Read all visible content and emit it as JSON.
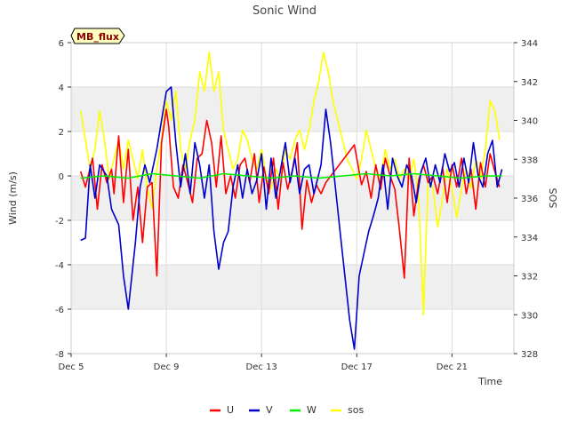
{
  "chart_data": {
    "type": "line",
    "title": "Sonic Wind",
    "badge": "MB_flux",
    "xlabel": "Time",
    "ylabel_left": "Wind (m/s)",
    "ylabel_right": "SOS",
    "xlim": [
      5.0,
      23.6
    ],
    "ylim_left": [
      -8,
      6
    ],
    "ylim_right": [
      328,
      344
    ],
    "x_ticks": [
      {
        "x": 5,
        "label": "Dec 5"
      },
      {
        "x": 9,
        "label": "Dec 9"
      },
      {
        "x": 13,
        "label": "Dec 13"
      },
      {
        "x": 17,
        "label": "Dec 17"
      },
      {
        "x": 21,
        "label": "Dec 21"
      }
    ],
    "y_ticks_left": [
      -8,
      -6,
      -4,
      -2,
      0,
      2,
      4,
      6
    ],
    "y_ticks_right": [
      328,
      330,
      332,
      334,
      336,
      338,
      340,
      342,
      344
    ],
    "grid": true,
    "banded_background": true,
    "legend_position": "bottom-center",
    "colors": {
      "U": "#ff0000",
      "V": "#0000cc",
      "W": "#00ee00",
      "sos": "#ffff00",
      "band": "#efefef",
      "badge_fill": "#ffffc0",
      "badge_text": "#8b0000"
    },
    "series": [
      {
        "name": "U",
        "axis": "left",
        "x": [
          5.4,
          5.6,
          5.9,
          6.1,
          6.3,
          6.5,
          6.7,
          6.8,
          7.0,
          7.2,
          7.4,
          7.6,
          7.8,
          8.0,
          8.2,
          8.4,
          8.6,
          8.8,
          9.0,
          9.1,
          9.3,
          9.5,
          9.7,
          9.9,
          10.1,
          10.3,
          10.5,
          10.7,
          10.9,
          11.1,
          11.3,
          11.5,
          11.7,
          11.9,
          12.1,
          12.3,
          12.5,
          12.7,
          12.9,
          13.1,
          13.3,
          13.5,
          13.7,
          13.9,
          14.1,
          14.3,
          14.5,
          14.7,
          14.9,
          15.1,
          15.3,
          15.5,
          15.7,
          16.9,
          17.0,
          17.2,
          17.4,
          17.6,
          17.8,
          18.0,
          18.2,
          18.4,
          18.6,
          18.8,
          19.0,
          19.2,
          19.4,
          19.6,
          19.8,
          20.0,
          20.2,
          20.4,
          20.6,
          20.8,
          21.0,
          21.2,
          21.4,
          21.6,
          21.8,
          22.0,
          22.2,
          22.4,
          22.6,
          22.8,
          23.0
        ],
        "y": [
          0.2,
          -0.5,
          0.8,
          -1.5,
          0.5,
          -0.3,
          0.3,
          -0.8,
          1.8,
          -1.2,
          1.2,
          -2.0,
          -0.5,
          -3.0,
          -0.5,
          -0.3,
          -4.5,
          1.5,
          3.0,
          2.2,
          -0.5,
          -1.0,
          0.5,
          -0.3,
          -1.2,
          0.8,
          1.0,
          2.5,
          1.5,
          -0.5,
          1.8,
          -0.8,
          0.0,
          -1.0,
          0.5,
          0.8,
          -0.3,
          1.0,
          -1.2,
          0.4,
          -0.8,
          0.8,
          -1.5,
          0.6,
          -0.6,
          0.3,
          1.5,
          -2.4,
          -0.2,
          -1.2,
          -0.4,
          -0.8,
          -0.3,
          1.4,
          0.8,
          -0.4,
          0.2,
          -1.0,
          0.5,
          -0.6,
          0.8,
          0.0,
          -0.6,
          -2.5,
          -4.6,
          0.8,
          -1.8,
          -0.2,
          0.5,
          -0.3,
          0.0,
          -0.8,
          0.4,
          -1.2,
          0.5,
          -0.5,
          0.8,
          -0.8,
          0.3,
          -1.5,
          0.6,
          -0.5,
          1.0,
          0.2,
          -0.5
        ]
      },
      {
        "name": "V",
        "axis": "left",
        "x": [
          5.4,
          5.6,
          5.8,
          6.0,
          6.2,
          6.5,
          6.7,
          7.0,
          7.2,
          7.4,
          7.7,
          7.9,
          8.1,
          8.3,
          8.6,
          8.8,
          9.0,
          9.2,
          9.4,
          9.6,
          9.8,
          10.0,
          10.2,
          10.4,
          10.6,
          10.8,
          11.0,
          11.2,
          11.4,
          11.6,
          11.8,
          12.0,
          12.2,
          12.4,
          12.6,
          12.8,
          13.0,
          13.2,
          13.4,
          13.6,
          13.8,
          14.0,
          14.2,
          14.4,
          14.6,
          14.8,
          15.0,
          15.2,
          15.5,
          15.7,
          15.9,
          16.1,
          16.3,
          16.5,
          16.7,
          16.9,
          17.1,
          17.3,
          17.5,
          17.7,
          17.9,
          18.1,
          18.3,
          18.5,
          18.7,
          18.9,
          19.1,
          19.3,
          19.5,
          19.7,
          19.9,
          20.1,
          20.3,
          20.5,
          20.7,
          20.9,
          21.1,
          21.3,
          21.5,
          21.7,
          21.9,
          22.1,
          22.3,
          22.5,
          22.7,
          22.9,
          23.1
        ],
        "y": [
          -2.9,
          -2.8,
          0.5,
          -1.0,
          0.5,
          0.0,
          -1.5,
          -2.2,
          -4.5,
          -6.0,
          -3.0,
          -0.5,
          0.5,
          -0.3,
          1.2,
          2.5,
          3.8,
          4.0,
          1.5,
          -0.5,
          1.0,
          -0.8,
          1.5,
          0.5,
          -1.0,
          0.5,
          -2.5,
          -4.2,
          -3.0,
          -2.5,
          -0.5,
          0.5,
          -1.0,
          0.3,
          -0.8,
          -0.2,
          1.0,
          -1.5,
          0.8,
          -1.0,
          0.3,
          1.5,
          -0.3,
          0.8,
          -0.8,
          0.3,
          0.5,
          -0.8,
          0.5,
          3.0,
          1.5,
          -0.5,
          -2.5,
          -4.5,
          -6.5,
          -7.8,
          -4.5,
          -3.5,
          -2.5,
          -1.8,
          -1.0,
          0.5,
          -1.5,
          0.8,
          0.0,
          -0.5,
          0.5,
          0.0,
          -1.2,
          0.2,
          0.8,
          -0.5,
          0.5,
          -0.3,
          1.0,
          0.2,
          0.6,
          -0.5,
          0.8,
          -0.3,
          1.5,
          0.0,
          -0.5,
          1.0,
          1.6,
          -0.5,
          0.3
        ]
      },
      {
        "name": "W",
        "axis": "left",
        "x": [
          5.4,
          6.4,
          7.4,
          8.4,
          9.4,
          10.4,
          11.4,
          12.4,
          13.4,
          14.4,
          15.4,
          16.4,
          17.4,
          18.4,
          19.4,
          20.4,
          21.4,
          22.4,
          23.1
        ],
        "y": [
          -0.1,
          0.0,
          -0.1,
          0.1,
          0.0,
          -0.1,
          0.1,
          0.0,
          -0.1,
          0.0,
          -0.1,
          0.0,
          0.1,
          0.0,
          0.1,
          0.0,
          -0.1,
          0.0,
          0.0
        ]
      },
      {
        "name": "sos",
        "axis": "right",
        "x": [
          5.4,
          5.6,
          5.8,
          6.0,
          6.2,
          6.4,
          6.6,
          6.8,
          7.0,
          7.2,
          7.4,
          7.6,
          7.8,
          8.0,
          8.2,
          8.4,
          8.6,
          8.8,
          9.0,
          9.2,
          9.4,
          9.6,
          9.8,
          10.0,
          10.2,
          10.4,
          10.6,
          10.8,
          11.0,
          11.2,
          11.4,
          11.6,
          11.8,
          12.0,
          12.2,
          12.4,
          12.6,
          12.8,
          13.0,
          13.2,
          13.4,
          13.6,
          13.8,
          14.0,
          14.2,
          14.4,
          14.6,
          14.8,
          15.0,
          15.2,
          15.4,
          15.6,
          15.8,
          16.0,
          16.2,
          16.4,
          16.6,
          16.8,
          17.0,
          17.2,
          17.4,
          17.6,
          17.8,
          18.0,
          18.2,
          18.4,
          18.6,
          18.8,
          19.0,
          19.2,
          19.4,
          19.6,
          19.8,
          20.0,
          20.2,
          20.4,
          20.6,
          20.8,
          21.0,
          21.2,
          21.4,
          21.6,
          21.8,
          22.0,
          22.2,
          22.4,
          22.6,
          22.8,
          23.0
        ],
        "y": [
          340.5,
          339.0,
          337.5,
          338.5,
          340.5,
          339.0,
          337.0,
          338.0,
          339.0,
          337.5,
          339.0,
          338.0,
          337.0,
          338.5,
          336.5,
          335.5,
          337.5,
          339.0,
          341.0,
          340.0,
          341.5,
          338.5,
          337.5,
          339.0,
          340.0,
          342.5,
          341.5,
          343.5,
          341.5,
          342.5,
          339.5,
          338.5,
          337.5,
          338.0,
          339.5,
          339.0,
          338.0,
          337.5,
          338.5,
          337.0,
          336.5,
          337.5,
          337.0,
          338.5,
          338.0,
          339.0,
          339.5,
          338.5,
          339.5,
          341.0,
          342.0,
          343.5,
          342.5,
          341.0,
          340.0,
          339.0,
          338.0,
          337.5,
          337.0,
          338.0,
          339.5,
          338.5,
          337.5,
          337.0,
          338.5,
          337.5,
          338.0,
          337.0,
          337.5,
          337.0,
          338.0,
          336.0,
          330.0,
          337.0,
          336.5,
          334.5,
          336.0,
          337.5,
          336.5,
          335.0,
          336.5,
          337.5,
          336.5,
          338.0,
          337.0,
          338.5,
          341.0,
          340.5,
          339.0
        ]
      }
    ]
  }
}
